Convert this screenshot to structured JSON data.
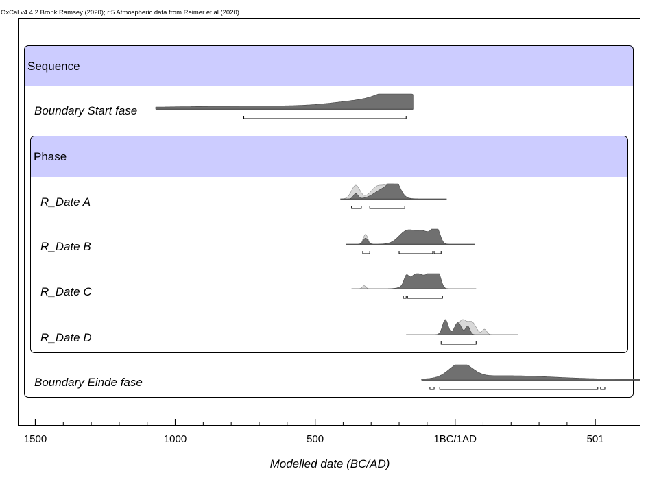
{
  "header": "OxCal v4.4.2 Bronk Ramsey (2020); r:5 Atmospheric data from Reimer et al (2020)",
  "colors": {
    "section_header": "#ccccff",
    "posterior": "#707070",
    "likelihood": "#d8d8d8",
    "frame": "#000000"
  },
  "chart_data": {
    "type": "area",
    "xlabel": "Modelled date (BC/AD)",
    "x_ticks": [
      {
        "value": -1500,
        "label": "1500"
      },
      {
        "value": -1000,
        "label": "1000"
      },
      {
        "value": -500,
        "label": "500"
      },
      {
        "value": 0,
        "label": "1BC/1AD"
      },
      {
        "value": 501,
        "label": "501"
      }
    ],
    "xlim": [
      -1560,
      660
    ],
    "sections": [
      {
        "name": "Sequence",
        "level": 1
      },
      {
        "name": "Phase",
        "level": 2
      }
    ],
    "rows": [
      {
        "name": "Boundary Start fase",
        "level": 1,
        "range": [
          -1070,
          -150
        ],
        "posterior_peaks": [
          {
            "x": -650,
            "w": 450,
            "h": 0.2
          },
          {
            "x": -300,
            "w": 120,
            "h": 0.45
          },
          {
            "x": -200,
            "w": 60,
            "h": 0.9
          }
        ],
        "prior_peaks": [],
        "hpd": [
          [
            -755,
            -175
          ]
        ]
      },
      {
        "name": "R_Date A",
        "level": 2,
        "range": [
          -410,
          -30
        ],
        "posterior_peaks": [
          {
            "x": -355,
            "w": 8,
            "h": 0.35
          },
          {
            "x": -250,
            "w": 35,
            "h": 0.7
          },
          {
            "x": -215,
            "w": 18,
            "h": 0.9
          }
        ],
        "prior_peaks": [
          {
            "x": -355,
            "w": 15,
            "h": 0.9
          },
          {
            "x": -275,
            "w": 25,
            "h": 0.85
          },
          {
            "x": -225,
            "w": 20,
            "h": 0.95
          }
        ],
        "hpd": [
          [
            -370,
            -335
          ],
          [
            -305,
            -180
          ]
        ]
      },
      {
        "name": "R_Date B",
        "level": 2,
        "range": [
          -390,
          70
        ],
        "posterior_peaks": [
          {
            "x": -320,
            "w": 8,
            "h": 0.4
          },
          {
            "x": -170,
            "w": 30,
            "h": 0.9
          },
          {
            "x": -110,
            "w": 25,
            "h": 0.75
          },
          {
            "x": -75,
            "w": 12,
            "h": 0.7
          },
          {
            "x": -60,
            "w": 10,
            "h": 0.55
          }
        ],
        "prior_peaks": [
          {
            "x": -320,
            "w": 8,
            "h": 0.65
          }
        ],
        "hpd": [
          [
            -330,
            -305
          ],
          [
            -200,
            -80
          ],
          [
            -75,
            -50
          ]
        ]
      },
      {
        "name": "R_Date C",
        "level": 2,
        "range": [
          -370,
          75
        ],
        "posterior_peaks": [
          {
            "x": -175,
            "w": 8,
            "h": 0.5
          },
          {
            "x": -135,
            "w": 30,
            "h": 1.0
          },
          {
            "x": -85,
            "w": 15,
            "h": 0.8
          },
          {
            "x": -60,
            "w": 10,
            "h": 0.9
          }
        ],
        "prior_peaks": [
          {
            "x": -325,
            "w": 6,
            "h": 0.2
          }
        ],
        "hpd": [
          [
            -185,
            -175
          ],
          [
            -170,
            -45
          ]
        ]
      },
      {
        "name": "R_Date D",
        "level": 2,
        "range": [
          -175,
          225
        ],
        "posterior_peaks": [
          {
            "x": -35,
            "w": 10,
            "h": 1.0
          },
          {
            "x": 10,
            "w": 12,
            "h": 0.8
          },
          {
            "x": 45,
            "w": 8,
            "h": 0.55
          }
        ],
        "prior_peaks": [
          {
            "x": 25,
            "w": 15,
            "h": 0.95
          },
          {
            "x": 60,
            "w": 15,
            "h": 0.8
          },
          {
            "x": 105,
            "w": 8,
            "h": 0.35
          }
        ],
        "hpd": [
          [
            -50,
            75
          ]
        ]
      },
      {
        "name": "Boundary Einde fase",
        "level": 1,
        "range": [
          -120,
          660
        ],
        "posterior_peaks": [
          {
            "x": 20,
            "w": 40,
            "h": 0.95
          },
          {
            "x": 180,
            "w": 170,
            "h": 0.25
          },
          {
            "x": 500,
            "w": 350,
            "h": 0.04
          }
        ],
        "prior_peaks": [],
        "hpd": [
          [
            -90,
            -75
          ],
          [
            -55,
            510
          ],
          [
            520,
            535
          ]
        ]
      }
    ]
  }
}
